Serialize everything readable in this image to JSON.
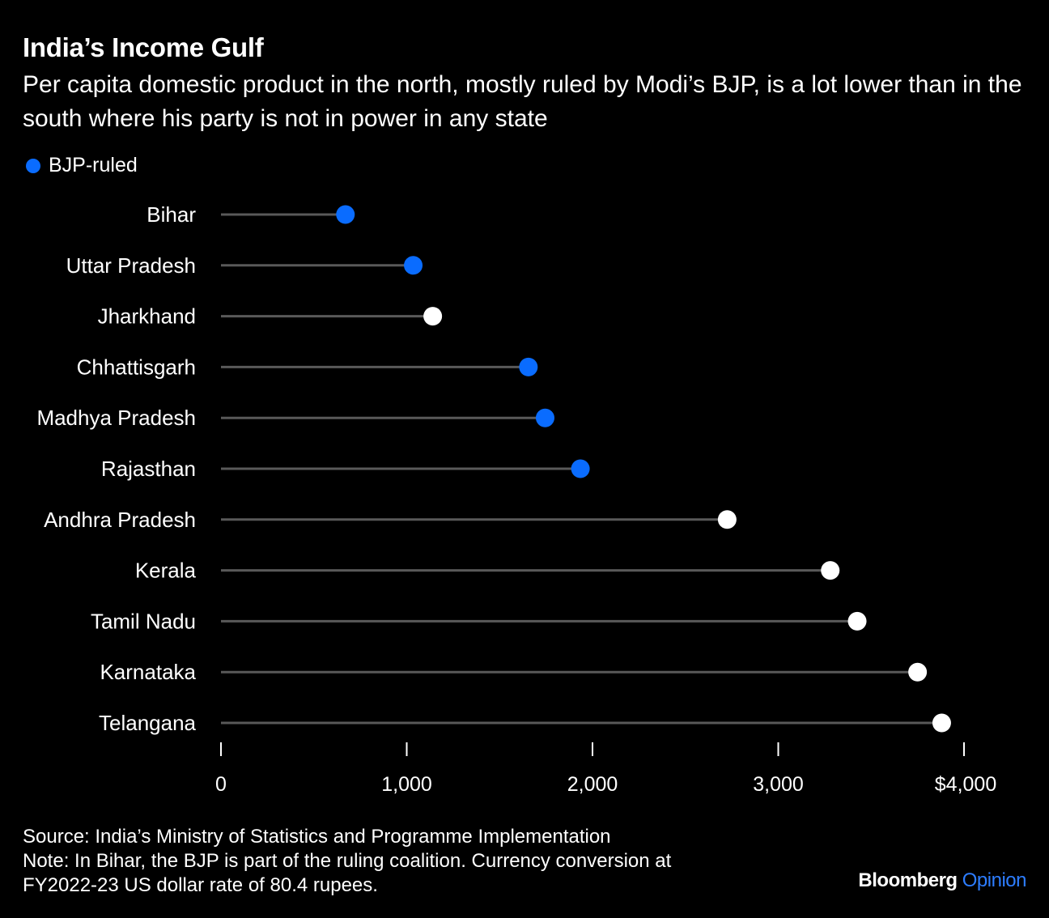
{
  "header": {
    "title": "India’s Income Gulf",
    "subtitle": "Per capita domestic product in the north, mostly ruled by Modi’s BJP, is a lot lower than in the south where his party is not in power in any state"
  },
  "legend": {
    "label": "BJP-ruled",
    "color": "#0a6cff"
  },
  "colors": {
    "bjp": "#0a6cff",
    "other": "#ffffff",
    "stem": "#595959",
    "background": "#000000"
  },
  "chart_data": {
    "type": "lollipop",
    "orientation": "horizontal",
    "categories": [
      "Bihar",
      "Uttar Pradesh",
      "Jharkhand",
      "Chhattisgarh",
      "Madhya Pradesh",
      "Rajasthan",
      "Andhra Pradesh",
      "Kerala",
      "Tamil Nadu",
      "Karnataka",
      "Telangana"
    ],
    "values": [
      670,
      1035,
      1140,
      1655,
      1745,
      1935,
      2725,
      3280,
      3425,
      3750,
      3880
    ],
    "bjp_ruled": [
      true,
      true,
      false,
      true,
      true,
      true,
      false,
      false,
      false,
      false,
      false
    ],
    "xlim": [
      0,
      4000
    ],
    "ticks": [
      0,
      1000,
      2000,
      3000,
      4000
    ],
    "tick_labels": [
      "0",
      "1,000",
      "2,000",
      "3,000",
      "$4,000"
    ],
    "legend_placement": "top-left",
    "grid": false
  },
  "footer": {
    "source": "Source: India’s Ministry of Statistics and Programme Implementation",
    "note_line1": "Note: In Bihar, the BJP is part of the ruling coalition. Currency conversion at",
    "note_line2": "FY2022-23 US dollar rate of 80.4 rupees."
  },
  "brand": {
    "part1": "Bloomberg",
    "part2": "Opinion",
    "part2_color": "#2d7dff"
  }
}
